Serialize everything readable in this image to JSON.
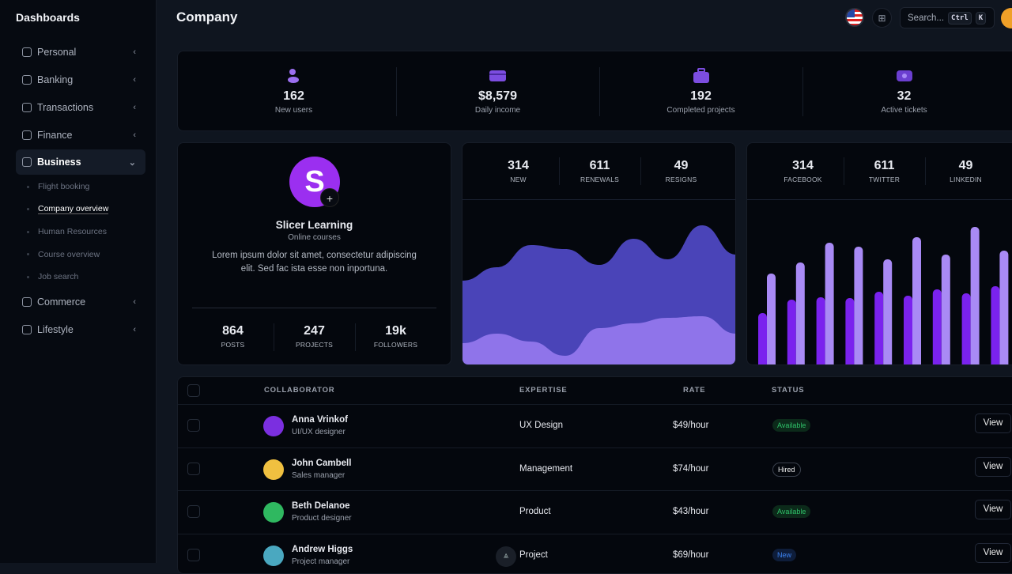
{
  "sidebar": {
    "title": "Dashboards",
    "items": [
      {
        "label": "Personal",
        "icon": "box-icon"
      },
      {
        "label": "Banking",
        "icon": "building-icon"
      },
      {
        "label": "Transactions",
        "icon": "credit-card-icon"
      },
      {
        "label": "Finance",
        "icon": "chart-icon"
      },
      {
        "label": "Business",
        "icon": "briefcase-icon",
        "expanded": true
      },
      {
        "label": "Commerce",
        "icon": "store-icon"
      },
      {
        "label": "Lifestyle",
        "icon": "leaf-icon"
      }
    ],
    "business_sub": [
      {
        "label": "Flight booking"
      },
      {
        "label": "Company overview",
        "active": true
      },
      {
        "label": "Human Resources"
      },
      {
        "label": "Course overview"
      },
      {
        "label": "Job search"
      }
    ]
  },
  "header": {
    "title": "Company",
    "search_placeholder": "Search...",
    "kbd1": "Ctrl",
    "kbd2": "K"
  },
  "stats": [
    {
      "value": "162",
      "label": "New users",
      "icon": "users-icon"
    },
    {
      "value": "$8,579",
      "label": "Daily income",
      "icon": "card-upload-icon"
    },
    {
      "value": "192",
      "label": "Completed projects",
      "icon": "briefcase-icon"
    },
    {
      "value": "32",
      "label": "Active tickets",
      "icon": "ticket-icon"
    }
  ],
  "profile": {
    "logo": "S",
    "name": "Slicer Learning",
    "subtitle": "Online courses",
    "description": "Lorem ipsum dolor sit amet, consectetur adipiscing elit. Sed fac ista esse non inportuna.",
    "stats": [
      {
        "value": "864",
        "label": "POSTS"
      },
      {
        "value": "247",
        "label": "PROJECTS"
      },
      {
        "value": "19k",
        "label": "FOLLOWERS"
      }
    ]
  },
  "area_card": {
    "stats": [
      {
        "value": "314",
        "label": "NEW"
      },
      {
        "value": "611",
        "label": "RENEWALS"
      },
      {
        "value": "49",
        "label": "RESIGNS"
      }
    ]
  },
  "bar_card": {
    "stats": [
      {
        "value": "314",
        "label": "FACEBOOK"
      },
      {
        "value": "611",
        "label": "TWITTER"
      },
      {
        "value": "49",
        "label": "LINKEDIN"
      }
    ]
  },
  "chart_data": [
    {
      "type": "area",
      "x": [
        1,
        2,
        3,
        4,
        5,
        6,
        7,
        8,
        9
      ],
      "series": [
        {
          "values": [
            108,
            125,
            153,
            148,
            128,
            161,
            135,
            178,
            141
          ],
          "color": "#4a44b8"
        },
        {
          "values": [
            29,
            41,
            31,
            13,
            48,
            54,
            61,
            63,
            41
          ],
          "color": "#8f74ea"
        }
      ]
    },
    {
      "type": "bar",
      "categories": [
        1,
        2,
        3,
        4,
        5,
        6,
        7,
        8,
        9
      ],
      "series": [
        {
          "values": [
            67,
            84,
            87,
            86,
            94,
            89,
            97,
            92,
            101
          ],
          "color": "#7a22ee"
        },
        {
          "values": [
            117,
            131,
            156,
            151,
            135,
            163,
            141,
            176,
            146
          ],
          "color": "#a98af5"
        }
      ]
    }
  ],
  "table": {
    "headers": [
      "COLLABORATOR",
      "EXPERTISE",
      "RATE",
      "STATUS"
    ],
    "view_label": "View",
    "rows": [
      {
        "name": "Anna Vrinkof",
        "role": "UI/UX designer",
        "expertise": "UX Design",
        "rate": "$49/hour",
        "status": "Available",
        "avatar_color": "#7b2fe0"
      },
      {
        "name": "John Cambell",
        "role": "Sales manager",
        "expertise": "Management",
        "rate": "$74/hour",
        "status": "Hired",
        "avatar_color": "#f0c040"
      },
      {
        "name": "Beth Delanoe",
        "role": "Product designer",
        "expertise": "Product",
        "rate": "$43/hour",
        "status": "Available",
        "avatar_color": "#2fb860"
      },
      {
        "name": "Andrew Higgs",
        "role": "Project manager",
        "expertise": "Project",
        "rate": "$69/hour",
        "status": "New",
        "avatar_color": "#4aa8c0"
      }
    ]
  }
}
